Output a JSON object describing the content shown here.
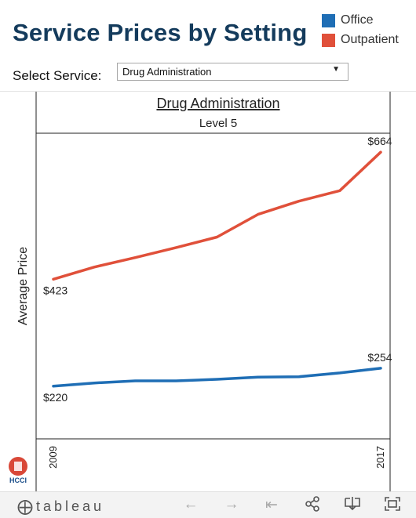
{
  "title": "Service Prices by Setting",
  "legend": [
    {
      "label": "Office",
      "color": "#1f6eb5"
    },
    {
      "label": "Outpatient",
      "color": "#e0503a"
    }
  ],
  "select": {
    "label": "Select Service:",
    "value": "Drug Administration",
    "arrow_icon": "dropdown-arrow-icon"
  },
  "chart_data": {
    "type": "line",
    "header_title": "Drug Administration",
    "header_subtitle": "Level 5",
    "ylabel": "Average Price",
    "x": [
      2009,
      2010,
      2011,
      2012,
      2013,
      2014,
      2015,
      2016,
      2017
    ],
    "x_tick_labels": [
      "2009",
      "2017"
    ],
    "ylim": [
      120,
      700
    ],
    "grid": false,
    "legend_position": "top-right",
    "series": [
      {
        "name": "Outpatient",
        "color": "#e0503a",
        "values": [
          423,
          446,
          464,
          483,
          503,
          546,
          571,
          591,
          664
        ],
        "point_labels": [
          "$423",
          "$664"
        ]
      },
      {
        "name": "Office",
        "color": "#1f6eb5",
        "values": [
          220,
          226,
          230,
          230,
          233,
          237,
          238,
          245,
          254
        ],
        "point_labels": [
          "$220",
          "$254"
        ]
      }
    ]
  },
  "logo": {
    "text": "HCCI"
  },
  "footer": {
    "brand": "tableau",
    "tools": [
      "undo-icon",
      "redo-icon",
      "revert-icon",
      "share-icon",
      "download-icon",
      "fullscreen-icon"
    ]
  }
}
